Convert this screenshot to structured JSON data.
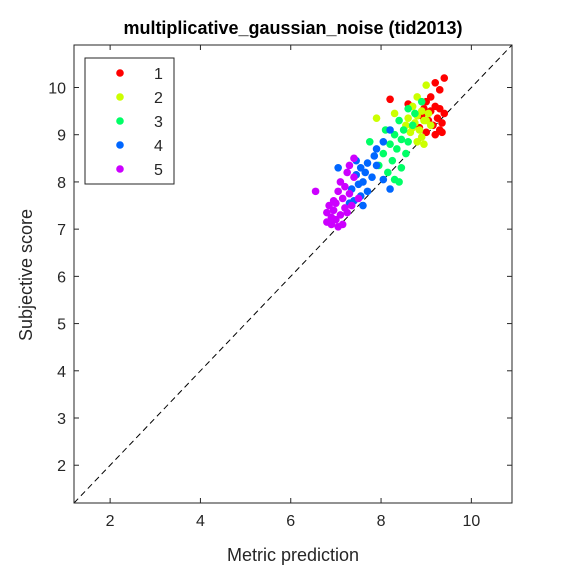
{
  "chart_data": {
    "type": "scatter",
    "title": "multiplicative_gaussian_noise (tid2013)",
    "xlabel": "Metric prediction",
    "ylabel": "Subjective score",
    "xlim": [
      1.2,
      10.9
    ],
    "ylim": [
      1.2,
      10.9
    ],
    "x_ticks": [
      "2",
      "4",
      "6",
      "8",
      "10"
    ],
    "y_ticks": [
      "2",
      "3",
      "4",
      "5",
      "6",
      "7",
      "8",
      "9",
      "10"
    ],
    "grid": false,
    "legend_position": "top-left",
    "reference_line": "y = x (dashed)",
    "series": [
      {
        "name": "1",
        "color": "#ff0000",
        "points": [
          [
            9.4,
            10.2
          ],
          [
            9.2,
            10.1
          ],
          [
            9.3,
            9.95
          ],
          [
            9.1,
            9.8
          ],
          [
            9.0,
            9.7
          ],
          [
            9.2,
            9.6
          ],
          [
            8.95,
            9.55
          ],
          [
            9.3,
            9.55
          ],
          [
            9.1,
            9.5
          ],
          [
            9.4,
            9.45
          ],
          [
            8.9,
            9.4
          ],
          [
            9.25,
            9.35
          ],
          [
            9.05,
            9.3
          ],
          [
            9.35,
            9.25
          ],
          [
            9.15,
            9.2
          ],
          [
            8.85,
            9.15
          ],
          [
            9.3,
            9.1
          ],
          [
            9.0,
            9.05
          ],
          [
            9.2,
            9.0
          ],
          [
            8.6,
            9.65
          ],
          [
            8.2,
            9.75
          ],
          [
            9.35,
            9.05
          ]
        ]
      },
      {
        "name": "2",
        "color": "#ccff00",
        "points": [
          [
            9.0,
            10.05
          ],
          [
            8.8,
            9.8
          ],
          [
            8.7,
            9.6
          ],
          [
            8.9,
            9.5
          ],
          [
            9.05,
            9.45
          ],
          [
            8.8,
            9.4
          ],
          [
            8.6,
            9.35
          ],
          [
            8.95,
            9.3
          ],
          [
            8.75,
            9.25
          ],
          [
            9.1,
            9.2
          ],
          [
            8.7,
            9.15
          ],
          [
            8.85,
            9.1
          ],
          [
            8.65,
            9.05
          ],
          [
            8.9,
            8.95
          ],
          [
            8.8,
            8.85
          ],
          [
            8.95,
            8.8
          ],
          [
            7.9,
            9.35
          ],
          [
            8.55,
            9.2
          ],
          [
            8.3,
            9.45
          ],
          [
            9.0,
            9.3
          ]
        ]
      },
      {
        "name": "3",
        "color": "#00ff66",
        "points": [
          [
            8.9,
            9.7
          ],
          [
            8.6,
            9.55
          ],
          [
            8.4,
            9.3
          ],
          [
            8.7,
            9.2
          ],
          [
            8.5,
            9.1
          ],
          [
            8.3,
            9.0
          ],
          [
            8.45,
            8.9
          ],
          [
            8.6,
            8.85
          ],
          [
            8.2,
            8.8
          ],
          [
            8.35,
            8.7
          ],
          [
            8.05,
            8.6
          ],
          [
            8.25,
            8.45
          ],
          [
            8.45,
            8.3
          ],
          [
            8.15,
            8.2
          ],
          [
            8.3,
            8.05
          ],
          [
            8.4,
            8.0
          ],
          [
            7.95,
            8.35
          ],
          [
            8.55,
            8.6
          ],
          [
            8.1,
            9.1
          ],
          [
            7.75,
            8.85
          ],
          [
            8.75,
            9.45
          ]
        ]
      },
      {
        "name": "4",
        "color": "#0066ff",
        "points": [
          [
            8.2,
            9.1
          ],
          [
            8.05,
            8.85
          ],
          [
            7.9,
            8.7
          ],
          [
            7.85,
            8.55
          ],
          [
            7.7,
            8.4
          ],
          [
            7.55,
            8.3
          ],
          [
            7.65,
            8.2
          ],
          [
            7.45,
            8.15
          ],
          [
            7.8,
            8.1
          ],
          [
            7.6,
            8.0
          ],
          [
            7.5,
            7.95
          ],
          [
            7.35,
            7.85
          ],
          [
            7.7,
            7.8
          ],
          [
            7.55,
            7.7
          ],
          [
            7.4,
            7.6
          ],
          [
            7.05,
            8.3
          ],
          [
            8.2,
            7.85
          ],
          [
            7.45,
            8.45
          ],
          [
            7.9,
            8.35
          ],
          [
            7.3,
            7.55
          ],
          [
            7.6,
            7.5
          ],
          [
            8.05,
            8.05
          ]
        ]
      },
      {
        "name": "5",
        "color": "#cc00ff",
        "points": [
          [
            7.4,
            8.5
          ],
          [
            7.3,
            8.35
          ],
          [
            7.25,
            8.2
          ],
          [
            7.1,
            8.0
          ],
          [
            7.2,
            7.9
          ],
          [
            7.05,
            7.8
          ],
          [
            6.55,
            7.8
          ],
          [
            7.3,
            7.75
          ],
          [
            7.15,
            7.65
          ],
          [
            7.0,
            7.55
          ],
          [
            6.85,
            7.5
          ],
          [
            7.2,
            7.45
          ],
          [
            6.95,
            7.4
          ],
          [
            6.8,
            7.35
          ],
          [
            7.1,
            7.3
          ],
          [
            6.9,
            7.25
          ],
          [
            7.0,
            7.2
          ],
          [
            6.8,
            7.15
          ],
          [
            7.15,
            7.1
          ],
          [
            7.05,
            7.05
          ],
          [
            7.5,
            7.65
          ],
          [
            7.35,
            7.5
          ],
          [
            6.95,
            7.6
          ],
          [
            7.25,
            7.35
          ],
          [
            7.4,
            8.1
          ],
          [
            6.9,
            7.1
          ]
        ]
      }
    ]
  }
}
